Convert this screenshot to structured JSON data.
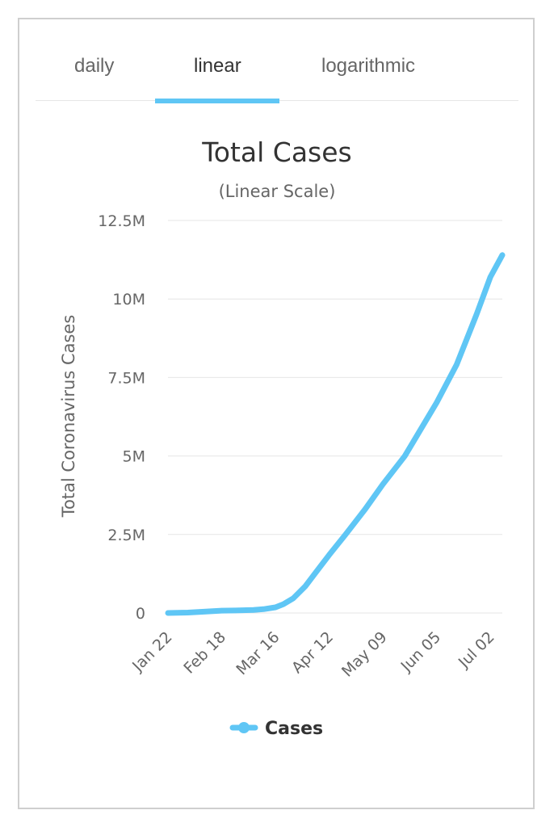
{
  "tabs": [
    {
      "label": "daily",
      "active": false
    },
    {
      "label": "linear",
      "active": true
    },
    {
      "label": "logarithmic",
      "active": false
    }
  ],
  "colors": {
    "series": "#5fc6f5",
    "grid": "#e6e6e6",
    "tab_indicator": "#5fc6f5"
  },
  "chart_data": {
    "type": "line",
    "title": "Total Cases",
    "subtitle": "(Linear Scale)",
    "xlabel": "",
    "ylabel": "Total Coronavirus Cases",
    "ylim": [
      0,
      12500000
    ],
    "yticks": [
      {
        "value": 0,
        "label": "0"
      },
      {
        "value": 2500000,
        "label": "2.5M"
      },
      {
        "value": 5000000,
        "label": "5M"
      },
      {
        "value": 7500000,
        "label": "7.5M"
      },
      {
        "value": 10000000,
        "label": "10M"
      },
      {
        "value": 12500000,
        "label": "12.5M"
      }
    ],
    "xlim": [
      "2020-01-22",
      "2020-07-08"
    ],
    "xticks": [
      {
        "date": "2020-01-22",
        "label": "Jan 22"
      },
      {
        "date": "2020-02-18",
        "label": "Feb 18"
      },
      {
        "date": "2020-03-16",
        "label": "Mar 16"
      },
      {
        "date": "2020-04-12",
        "label": "Apr 12"
      },
      {
        "date": "2020-05-09",
        "label": "May 09"
      },
      {
        "date": "2020-06-05",
        "label": "Jun 05"
      },
      {
        "date": "2020-07-02",
        "label": "Jul 02"
      }
    ],
    "grid": true,
    "legend": "bottom-center",
    "series": [
      {
        "name": "Cases",
        "points": [
          {
            "x": "2020-01-22",
            "y": 580
          },
          {
            "x": "2020-02-01",
            "y": 12000
          },
          {
            "x": "2020-02-10",
            "y": 43000
          },
          {
            "x": "2020-02-18",
            "y": 75000
          },
          {
            "x": "2020-02-25",
            "y": 81000
          },
          {
            "x": "2020-03-05",
            "y": 98000
          },
          {
            "x": "2020-03-10",
            "y": 120000
          },
          {
            "x": "2020-03-16",
            "y": 180000
          },
          {
            "x": "2020-03-20",
            "y": 280000
          },
          {
            "x": "2020-03-25",
            "y": 470000
          },
          {
            "x": "2020-03-31",
            "y": 850000
          },
          {
            "x": "2020-04-05",
            "y": 1270000
          },
          {
            "x": "2020-04-12",
            "y": 1850000
          },
          {
            "x": "2020-04-20",
            "y": 2480000
          },
          {
            "x": "2020-04-30",
            "y": 3300000
          },
          {
            "x": "2020-05-09",
            "y": 4100000
          },
          {
            "x": "2020-05-20",
            "y": 5000000
          },
          {
            "x": "2020-06-05",
            "y": 6700000
          },
          {
            "x": "2020-06-15",
            "y": 7900000
          },
          {
            "x": "2020-06-25",
            "y": 9500000
          },
          {
            "x": "2020-07-02",
            "y": 10700000
          },
          {
            "x": "2020-07-08",
            "y": 11400000
          }
        ]
      }
    ]
  }
}
